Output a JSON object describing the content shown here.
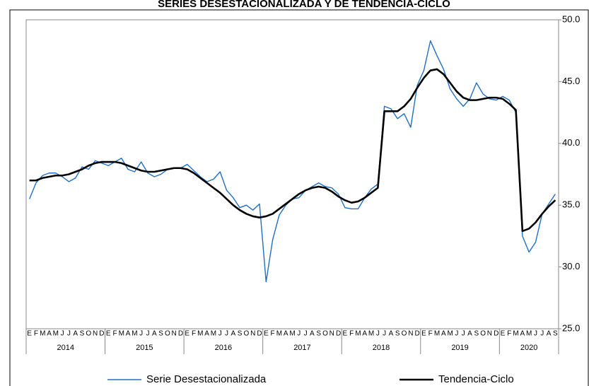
{
  "chart_data": {
    "type": "line",
    "title": "SERIES DESESTACIONALIZADA Y DE TENDENCIA-CICLO",
    "categories": [
      "E",
      "F",
      "M",
      "A",
      "M",
      "J",
      "J",
      "A",
      "S",
      "O",
      "N",
      "D",
      "E",
      "F",
      "M",
      "A",
      "M",
      "J",
      "J",
      "A",
      "S",
      "O",
      "N",
      "D",
      "E",
      "F",
      "M",
      "A",
      "M",
      "J",
      "J",
      "A",
      "S",
      "O",
      "N",
      "D",
      "E",
      "F",
      "M",
      "A",
      "M",
      "J",
      "J",
      "A",
      "S",
      "O",
      "N",
      "D",
      "E",
      "F",
      "M",
      "A",
      "M",
      "J",
      "J",
      "A",
      "S",
      "O",
      "N",
      "D",
      "E",
      "F",
      "M",
      "A",
      "M",
      "J",
      "J",
      "A",
      "S",
      "O",
      "N",
      "D",
      "E",
      "F",
      "M",
      "A",
      "M",
      "J",
      "J",
      "A",
      "S"
    ],
    "years": [
      "2014",
      "2015",
      "2016",
      "2017",
      "2018",
      "2019",
      "2020"
    ],
    "series": [
      {
        "name": "Serie Desestacionalizada",
        "color": "#1f6fc5",
        "values": [
          35.5,
          36.8,
          37.4,
          37.6,
          37.6,
          37.3,
          36.9,
          37.2,
          38.1,
          37.9,
          38.6,
          38.4,
          38.2,
          38.5,
          38.8,
          37.9,
          37.7,
          38.5,
          37.6,
          37.3,
          37.5,
          37.9,
          38.0,
          38.0,
          38.3,
          37.8,
          37.3,
          36.9,
          37.1,
          37.7,
          36.2,
          35.6,
          34.8,
          35.0,
          34.6,
          35.1,
          28.8,
          32.2,
          34.2,
          35.0,
          35.5,
          35.6,
          36.2,
          36.5,
          36.8,
          36.5,
          36.4,
          35.9,
          34.8,
          34.7,
          34.7,
          35.6,
          36.3,
          36.7,
          43.0,
          42.8,
          42.0,
          42.4,
          41.3,
          44.7,
          45.9,
          48.3,
          47.1,
          46.0,
          44.4,
          43.6,
          43.0,
          43.6,
          44.9,
          44.0,
          43.6,
          43.5,
          43.8,
          43.5,
          42.5,
          32.5,
          31.2,
          32.0,
          34.3,
          35.1,
          35.9
        ]
      },
      {
        "name": "Tendencia-Ciclo",
        "color": "#000000",
        "values": [
          37.0,
          37.0,
          37.2,
          37.3,
          37.4,
          37.4,
          37.5,
          37.7,
          37.9,
          38.2,
          38.4,
          38.5,
          38.5,
          38.5,
          38.4,
          38.2,
          38.0,
          37.8,
          37.7,
          37.7,
          37.8,
          37.9,
          38.0,
          38.0,
          37.9,
          37.6,
          37.2,
          36.8,
          36.4,
          36.0,
          35.5,
          35.0,
          34.6,
          34.3,
          34.1,
          34.0,
          34.1,
          34.3,
          34.7,
          35.1,
          35.5,
          35.9,
          36.2,
          36.4,
          36.5,
          36.4,
          36.1,
          35.7,
          35.4,
          35.2,
          35.3,
          35.6,
          36.0,
          36.4,
          42.6,
          42.6,
          42.6,
          43.0,
          43.6,
          44.5,
          45.3,
          45.9,
          46.0,
          45.6,
          44.9,
          44.2,
          43.7,
          43.5,
          43.5,
          43.6,
          43.7,
          43.7,
          43.6,
          43.2,
          42.7,
          32.9,
          33.1,
          33.6,
          34.3,
          34.9,
          35.4
        ]
      }
    ],
    "ylim": [
      25,
      50
    ],
    "yticks": [
      {
        "value": 25,
        "label": "25.0"
      },
      {
        "value": 30,
        "label": "30.0"
      },
      {
        "value": 35,
        "label": "35.0"
      },
      {
        "value": 40,
        "label": "40.0"
      },
      {
        "value": 45,
        "label": "45.0"
      },
      {
        "value": 50,
        "label": "50.0"
      }
    ],
    "grid": false
  }
}
